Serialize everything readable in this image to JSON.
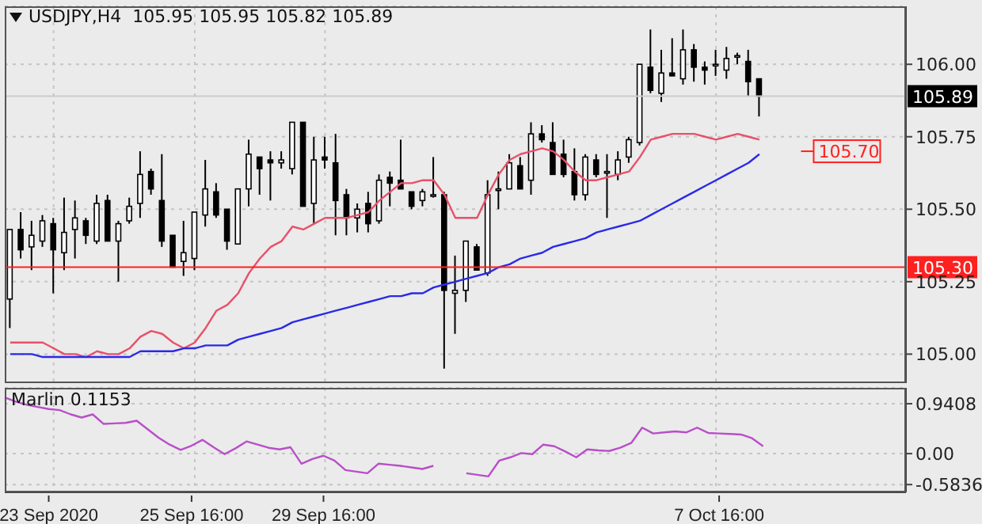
{
  "chart_data": [
    {
      "type": "candlestick",
      "title": "USDJPY,H4  105.95 105.95 105.82 105.89",
      "tick_labels": "y",
      "grid": true,
      "categories": [
        null,
        null,
        null,
        null,
        null,
        null,
        null,
        null,
        null,
        null,
        null,
        null,
        null,
        null,
        null,
        null,
        null,
        null,
        null,
        null,
        null,
        null,
        null,
        null,
        null,
        null,
        null,
        null,
        null,
        null,
        null,
        null,
        null,
        null,
        null,
        null,
        null,
        null,
        null,
        null,
        null,
        null,
        null,
        null,
        null,
        null,
        null,
        null,
        null,
        null,
        null,
        null,
        null,
        null,
        null,
        null,
        null,
        null,
        null,
        null,
        null,
        null,
        null,
        null,
        null,
        null,
        null,
        null,
        null,
        null,
        null,
        null,
        null,
        null,
        null,
        null,
        null,
        null,
        null,
        null,
        null,
        null,
        null
      ],
      "ohlc": [
        [
          105.19,
          105.43,
          105.09,
          105.43
        ],
        [
          105.43,
          105.49,
          105.33,
          105.36
        ],
        [
          105.37,
          105.46,
          105.29,
          105.41
        ],
        [
          105.39,
          105.48,
          105.37,
          105.46
        ],
        [
          105.45,
          105.47,
          105.21,
          105.36
        ],
        [
          105.35,
          105.54,
          105.29,
          105.42
        ],
        [
          105.43,
          105.53,
          105.33,
          105.47
        ],
        [
          105.46,
          105.47,
          105.38,
          105.41
        ],
        [
          105.39,
          105.55,
          105.38,
          105.52
        ],
        [
          105.53,
          105.55,
          105.39,
          105.39
        ],
        [
          105.39,
          105.46,
          105.25,
          105.45
        ],
        [
          105.46,
          105.54,
          105.45,
          105.51
        ],
        [
          105.52,
          105.7,
          105.47,
          105.62
        ],
        [
          105.63,
          105.64,
          105.55,
          105.57
        ],
        [
          105.53,
          105.69,
          105.37,
          105.39
        ],
        [
          105.41,
          105.41,
          105.3,
          105.3
        ],
        [
          105.32,
          105.46,
          105.27,
          105.35
        ],
        [
          105.33,
          105.49,
          105.29,
          105.49
        ],
        [
          105.48,
          105.67,
          105.44,
          105.57
        ],
        [
          105.56,
          105.59,
          105.47,
          105.48
        ],
        [
          105.5,
          105.5,
          105.36,
          105.39
        ],
        [
          105.38,
          105.57,
          105.38,
          105.57
        ],
        [
          105.57,
          105.74,
          105.51,
          105.69
        ],
        [
          105.68,
          105.68,
          105.55,
          105.64
        ],
        [
          105.67,
          105.7,
          105.53,
          105.66
        ],
        [
          105.66,
          105.7,
          105.64,
          105.67
        ],
        [
          105.64,
          105.8,
          105.62,
          105.8
        ],
        [
          105.8,
          105.8,
          105.51,
          105.51
        ],
        [
          105.52,
          105.75,
          105.45,
          105.67
        ],
        [
          105.68,
          105.75,
          105.64,
          105.67
        ],
        [
          105.66,
          105.76,
          105.41,
          105.53
        ],
        [
          105.55,
          105.57,
          105.41,
          105.47
        ],
        [
          105.47,
          105.52,
          105.42,
          105.5
        ],
        [
          105.52,
          105.56,
          105.42,
          105.45
        ],
        [
          105.46,
          105.62,
          105.45,
          105.6
        ],
        [
          105.61,
          105.63,
          105.51,
          105.59
        ],
        [
          105.6,
          105.74,
          105.57,
          105.57
        ],
        [
          105.56,
          105.56,
          105.5,
          105.51
        ],
        [
          105.53,
          105.57,
          105.51,
          105.56
        ],
        [
          105.55,
          105.68,
          105.54,
          105.55
        ],
        [
          105.55,
          105.56,
          104.95,
          105.22
        ],
        [
          105.21,
          105.34,
          105.07,
          105.22
        ],
        [
          105.22,
          105.39,
          105.18,
          105.39
        ],
        [
          105.37,
          105.38,
          105.29,
          105.29
        ],
        [
          105.28,
          105.6,
          105.27,
          105.55
        ],
        [
          105.57,
          105.63,
          105.5,
          105.57
        ],
        [
          105.57,
          105.69,
          105.57,
          105.66
        ],
        [
          105.65,
          105.68,
          105.57,
          105.57
        ],
        [
          105.6,
          105.8,
          105.55,
          105.76
        ],
        [
          105.76,
          105.79,
          105.73,
          105.74
        ],
        [
          105.73,
          105.8,
          105.62,
          105.62
        ],
        [
          105.69,
          105.74,
          105.61,
          105.62
        ],
        [
          105.63,
          105.71,
          105.53,
          105.55
        ],
        [
          105.55,
          105.69,
          105.53,
          105.68
        ],
        [
          105.67,
          105.69,
          105.61,
          105.62
        ],
        [
          105.63,
          105.69,
          105.47,
          105.63
        ],
        [
          105.62,
          105.7,
          105.6,
          105.67
        ],
        [
          105.68,
          105.75,
          105.66,
          105.74
        ],
        [
          105.73,
          106.0,
          105.72,
          106.0
        ],
        [
          105.99,
          106.12,
          105.9,
          105.91
        ],
        [
          105.9,
          106.05,
          105.87,
          105.97
        ],
        [
          105.97,
          106.09,
          105.96,
          105.96
        ],
        [
          105.95,
          106.12,
          105.93,
          106.05
        ],
        [
          106.05,
          106.07,
          105.94,
          105.99
        ],
        [
          105.99,
          106.01,
          105.93,
          105.98
        ],
        [
          106.0,
          106.05,
          105.96,
          106.0
        ],
        [
          105.98,
          106.06,
          105.95,
          106.02
        ],
        [
          106.03,
          106.04,
          106.0,
          106.03
        ],
        [
          106.01,
          106.05,
          105.89,
          105.94
        ],
        [
          105.95,
          105.95,
          105.82,
          105.89
        ],
        null,
        null,
        null,
        null,
        null,
        null,
        null,
        null,
        null,
        null,
        null,
        null,
        null
      ],
      "series": [
        {
          "type": "line",
          "color": "#e8506a",
          "values": [
            105.04,
            105.04,
            105.04,
            105.04,
            105.02,
            105.0,
            105.0,
            104.99,
            105.01,
            105.0,
            105.0,
            105.02,
            105.06,
            105.08,
            105.07,
            105.04,
            105.02,
            105.04,
            105.09,
            105.15,
            105.17,
            105.21,
            105.28,
            105.33,
            105.37,
            105.39,
            105.44,
            105.43,
            105.45,
            105.47,
            105.47,
            105.47,
            105.48,
            105.49,
            105.53,
            105.56,
            105.59,
            105.59,
            105.6,
            105.6,
            105.55,
            105.47,
            105.47,
            105.47,
            105.55,
            105.62,
            105.67,
            105.69,
            105.7,
            105.71,
            105.7,
            105.67,
            105.63,
            105.6,
            105.6,
            105.61,
            105.62,
            105.63,
            105.68,
            105.74,
            105.75,
            105.76,
            105.76,
            105.76,
            105.75,
            105.74,
            105.75,
            105.76,
            105.75,
            105.74,
            null,
            null,
            null,
            null,
            null,
            null,
            null,
            null,
            null,
            null,
            null,
            null,
            null
          ]
        },
        {
          "type": "line",
          "color": "#2a2ae8",
          "values": [
            105.0,
            105.0,
            105.0,
            104.99,
            104.99,
            104.99,
            104.99,
            104.99,
            104.99,
            104.99,
            104.99,
            104.99,
            105.01,
            105.01,
            105.01,
            105.01,
            105.02,
            105.02,
            105.03,
            105.03,
            105.03,
            105.05,
            105.06,
            105.07,
            105.08,
            105.09,
            105.11,
            105.12,
            105.13,
            105.14,
            105.15,
            105.16,
            105.17,
            105.18,
            105.19,
            105.2,
            105.2,
            105.21,
            105.21,
            105.23,
            105.24,
            105.25,
            105.26,
            105.27,
            105.28,
            105.3,
            105.31,
            105.33,
            105.34,
            105.35,
            105.37,
            105.38,
            105.39,
            105.4,
            105.42,
            105.43,
            105.44,
            105.45,
            105.46,
            105.48,
            105.5,
            105.52,
            105.54,
            105.56,
            105.58,
            105.6,
            105.62,
            105.64,
            105.66,
            105.69,
            null,
            null,
            null,
            null,
            null,
            null,
            null,
            null,
            null,
            null,
            null,
            null,
            null
          ]
        }
      ],
      "ylim": [
        104.9,
        106.2
      ],
      "yticks": [
        {
          "value": 105,
          "label": "105.00"
        },
        {
          "value": 105.25,
          "label": "105.25"
        },
        {
          "value": 105.5,
          "label": "105.50"
        },
        {
          "value": 105.75,
          "label": "105.75"
        },
        {
          "value": 106,
          "label": "106.00"
        }
      ],
      "ref_lines": [
        {
          "axis": "y",
          "value": 105.3,
          "label": "105.30",
          "color": "#ff2020"
        },
        {
          "axis": "y",
          "value": 105.89,
          "label": "105.89",
          "color": "#cccccc"
        }
      ],
      "annotations": [
        {
          "text": "105.70",
          "y": 105.7
        }
      ]
    },
    {
      "type": "line",
      "title": "Marlin 0.1153",
      "grid": true,
      "marker": "none",
      "categories": [
        null,
        null,
        null,
        null,
        "23 Sep 2020",
        null,
        null,
        null,
        null,
        null,
        null,
        null,
        null,
        null,
        null,
        null,
        null,
        "25 Sep 16:00",
        null,
        null,
        null,
        null,
        null,
        null,
        null,
        null,
        null,
        null,
        null,
        "29 Sep 16:00",
        null,
        null,
        null,
        null,
        null,
        null,
        null,
        null,
        null,
        null,
        null,
        null,
        null,
        null,
        null,
        null,
        null,
        null,
        null,
        null,
        null,
        null,
        null,
        null,
        null,
        null,
        null,
        null,
        null,
        null,
        null,
        null,
        null,
        null,
        null,
        "7 Oct 16:00",
        null,
        null,
        null,
        null,
        null,
        null,
        null,
        null,
        null,
        null,
        null,
        null,
        null,
        null,
        null,
        null,
        null
      ],
      "series": [
        {
          "color": "#b84fc8",
          "values": [
            1.06,
            0.98,
            0.92,
            0.88,
            0.84,
            0.82,
            0.74,
            0.68,
            0.74,
            0.56,
            0.57,
            0.58,
            0.62,
            0.46,
            0.3,
            0.17,
            0.07,
            0.15,
            0.26,
            0.12,
            -0.01,
            0.1,
            0.23,
            0.17,
            0.11,
            0.08,
            0.12,
            -0.19,
            -0.1,
            -0.04,
            -0.13,
            -0.31,
            -0.34,
            -0.37,
            -0.19,
            -0.21,
            -0.23,
            -0.26,
            -0.29,
            -0.23,
            null,
            null,
            -0.37,
            -0.4,
            -0.43,
            -0.13,
            -0.07,
            0.01,
            -0.01,
            0.17,
            0.14,
            0.04,
            -0.07,
            0.08,
            0.06,
            0.05,
            0.11,
            0.2,
            0.49,
            0.38,
            0.4,
            0.42,
            0.4,
            0.49,
            0.39,
            0.38,
            0.37,
            0.36,
            0.29,
            0.14,
            null,
            null,
            null,
            null,
            null,
            null,
            null,
            null,
            null,
            null,
            null,
            null,
            null
          ]
        }
      ],
      "ylim": [
        -0.73,
        1.24
      ],
      "yticks": [
        {
          "value": 0.9408,
          "label": "0.9408"
        },
        {
          "value": 0,
          "label": "0.00"
        },
        {
          "value": -0.5836,
          "label": "-0.5836"
        }
      ]
    }
  ]
}
